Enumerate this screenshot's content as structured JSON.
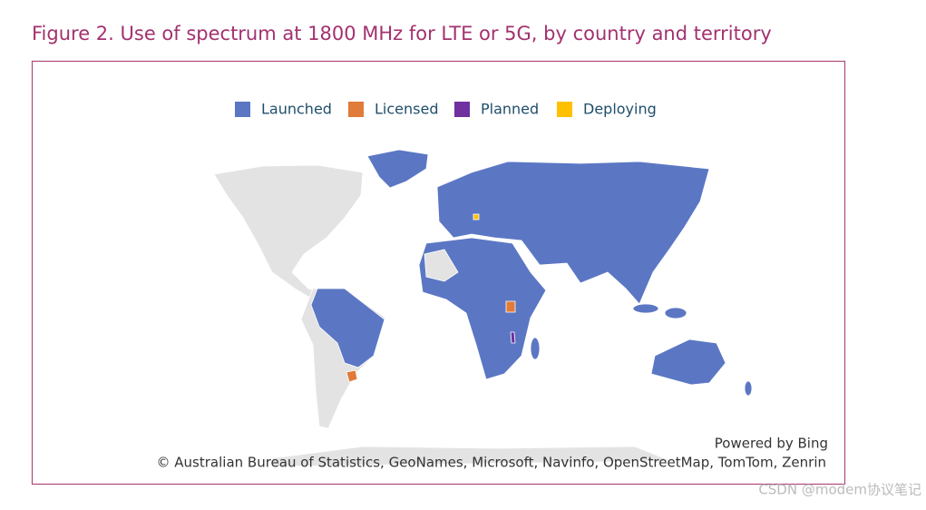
{
  "title": "Figure 2. Use of spectrum at 1800 MHz for LTE or 5G, by country and territory",
  "legend": [
    {
      "name": "Launched",
      "color": "#5b77c4"
    },
    {
      "name": "Licensed",
      "color": "#e07b39"
    },
    {
      "name": "Planned",
      "color": "#7030a0"
    },
    {
      "name": "Deploying",
      "color": "#ffc000"
    }
  ],
  "credits": {
    "powered": "Powered by Bing",
    "attribution": "© Australian Bureau of Statistics, GeoNames, Microsoft, Navinfo, OpenStreetMap, TomTom, Zenrin"
  },
  "watermark": "CSDN @modem协议笔记"
}
